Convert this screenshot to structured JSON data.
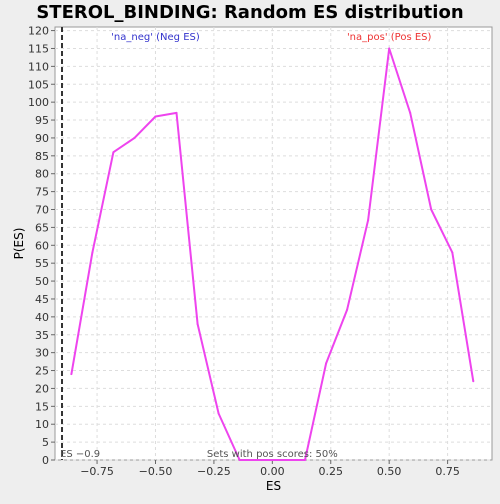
{
  "chart_data": {
    "type": "line",
    "title": "STEROL_BINDING: Random ES distribution",
    "xlabel": "ES",
    "ylabel": "P(ES)",
    "xlim": [
      -0.93,
      0.94
    ],
    "ylim": [
      0,
      121
    ],
    "x_ticks": [
      -0.75,
      -0.5,
      -0.25,
      0.0,
      0.25,
      0.5,
      0.75
    ],
    "x_tick_labels": [
      "−0.75",
      "−0.50",
      "−0.25",
      "0.00",
      "0.25",
      "0.50",
      "0.75"
    ],
    "y_ticks": [
      0,
      5,
      10,
      15,
      20,
      25,
      30,
      35,
      40,
      45,
      50,
      55,
      60,
      65,
      70,
      75,
      80,
      85,
      90,
      95,
      100,
      105,
      110,
      115,
      120
    ],
    "grid": true,
    "series": [
      {
        "name": "",
        "color": "#ee44ee",
        "x": [
          -0.86,
          -0.77,
          -0.68,
          -0.59,
          -0.5,
          -0.41,
          -0.32,
          -0.23,
          -0.14,
          -0.05,
          0.05,
          0.14,
          0.23,
          0.32,
          0.41,
          0.5,
          0.59,
          0.68,
          0.77,
          0.86
        ],
        "y": [
          24,
          58,
          86,
          90,
          96,
          97,
          38,
          13,
          0,
          0,
          0,
          0,
          27,
          42,
          67,
          115,
          97,
          70,
          58,
          22
        ]
      }
    ],
    "annotations": {
      "neg_label": "'na_neg' (Neg ES)",
      "neg_color": "#3333cc",
      "pos_label": "'na_pos' (Pos ES)",
      "pos_color": "#ee3333",
      "es_value": -0.9,
      "es_label": "ES −0.9",
      "pos_scores_label": "Sets with pos scores: 50%"
    }
  }
}
